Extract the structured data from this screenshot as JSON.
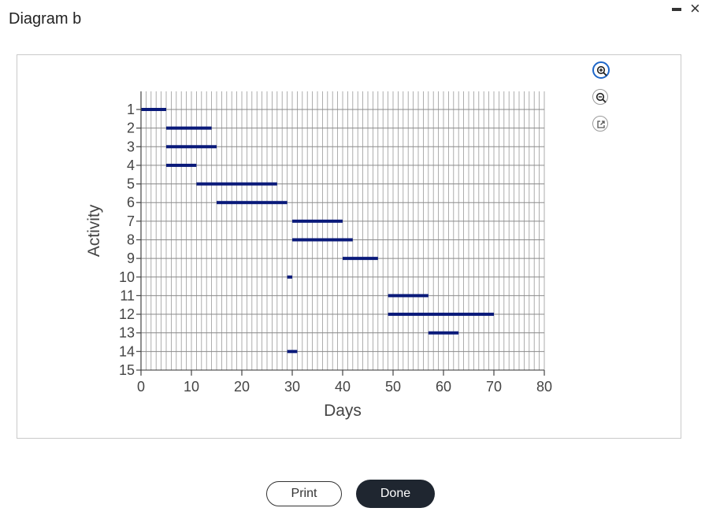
{
  "dialog": {
    "title": "Diagram b",
    "close_glyph": "×"
  },
  "toolbar": {
    "zoom_in_icon": "zoom-in-icon",
    "zoom_out_icon": "zoom-out-icon",
    "popout_icon": "external-link-icon",
    "accent": "#1e66c8"
  },
  "footer": {
    "print_label": "Print",
    "done_label": "Done"
  },
  "chart_data": {
    "type": "gantt",
    "xlabel": "Days",
    "ylabel": "Activity",
    "xlim": [
      0,
      80
    ],
    "x_ticks": [
      0,
      10,
      20,
      30,
      40,
      50,
      60,
      70,
      80
    ],
    "y_ticks": [
      1,
      2,
      3,
      4,
      5,
      6,
      7,
      8,
      9,
      10,
      11,
      12,
      13,
      14,
      15
    ],
    "grid": true,
    "bar_color": "#0a1a7a",
    "tasks": [
      {
        "activity": 1,
        "start": 0,
        "end": 5
      },
      {
        "activity": 2,
        "start": 5,
        "end": 14
      },
      {
        "activity": 3,
        "start": 5,
        "end": 15
      },
      {
        "activity": 4,
        "start": 5,
        "end": 11
      },
      {
        "activity": 5,
        "start": 11,
        "end": 27
      },
      {
        "activity": 6,
        "start": 15,
        "end": 29
      },
      {
        "activity": 7,
        "start": 30,
        "end": 40
      },
      {
        "activity": 8,
        "start": 30,
        "end": 42
      },
      {
        "activity": 9,
        "start": 40,
        "end": 47
      },
      {
        "activity": 10,
        "start": 29,
        "end": 30
      },
      {
        "activity": 11,
        "start": 49,
        "end": 57
      },
      {
        "activity": 12,
        "start": 49,
        "end": 70
      },
      {
        "activity": 13,
        "start": 57,
        "end": 63
      },
      {
        "activity": 14,
        "start": 29,
        "end": 31
      }
    ]
  }
}
